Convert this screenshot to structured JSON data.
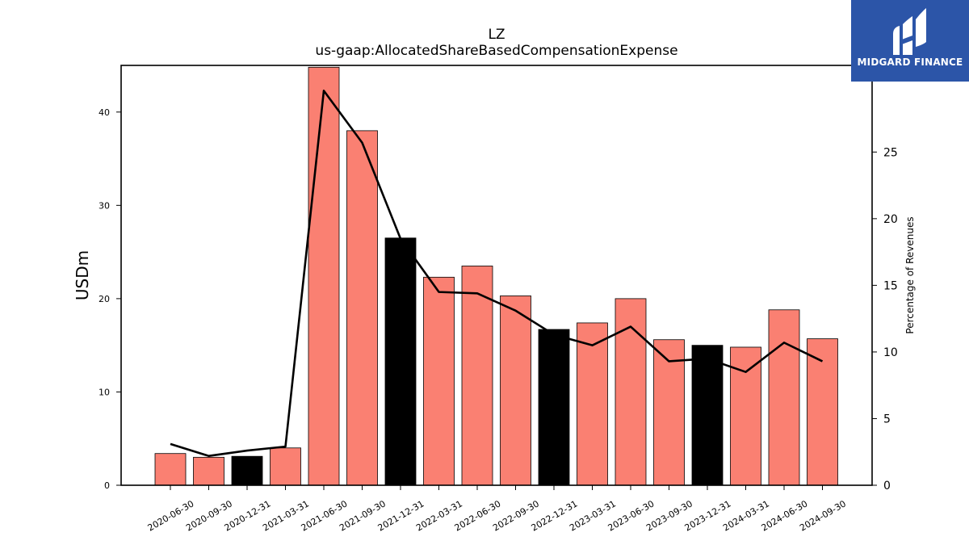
{
  "chart_data": {
    "type": "bar",
    "title": "LZ",
    "subtitle": "us-gaap:AllocatedShareBasedCompensationExpense",
    "ylabel": "USDm",
    "y2label": "Percentage of Revenues",
    "ylim": [
      0,
      45
    ],
    "y2lim": [
      0,
      31.5
    ],
    "yticks": [
      0,
      10,
      20,
      30,
      40
    ],
    "y2ticks": [
      0,
      5,
      10,
      15,
      20,
      25
    ],
    "categories": [
      "2020-06-30",
      "2020-09-30",
      "2020-12-31",
      "2021-03-31",
      "2021-06-30",
      "2021-09-30",
      "2021-12-31",
      "2022-03-31",
      "2022-06-30",
      "2022-09-30",
      "2022-12-31",
      "2023-03-31",
      "2023-06-30",
      "2023-09-30",
      "2023-12-31",
      "2024-03-31",
      "2024-06-30",
      "2024-09-30"
    ],
    "series": [
      {
        "type": "bar",
        "axis": "left",
        "values": [
          3.4,
          3.0,
          3.1,
          4.0,
          44.8,
          38.0,
          26.5,
          22.3,
          23.5,
          20.3,
          16.7,
          17.4,
          20.0,
          15.6,
          15.0,
          14.8,
          18.8,
          15.7
        ],
        "colors": [
          "#fa8072",
          "#fa8072",
          "#000000",
          "#fa8072",
          "#fa8072",
          "#fa8072",
          "#000000",
          "#fa8072",
          "#fa8072",
          "#fa8072",
          "#000000",
          "#fa8072",
          "#fa8072",
          "#fa8072",
          "#000000",
          "#fa8072",
          "#fa8072",
          "#fa8072"
        ]
      },
      {
        "type": "line",
        "axis": "right",
        "color": "#000000",
        "values": [
          3.1,
          2.2,
          2.6,
          2.9,
          29.6,
          25.7,
          18.5,
          14.5,
          14.4,
          13.1,
          11.3,
          10.5,
          11.9,
          9.3,
          9.5,
          8.5,
          10.7,
          9.3
        ]
      }
    ],
    "grid": false,
    "legend": "none"
  },
  "logo": {
    "text": "MIDGARD FINANCE",
    "background": "#2c55a8"
  }
}
